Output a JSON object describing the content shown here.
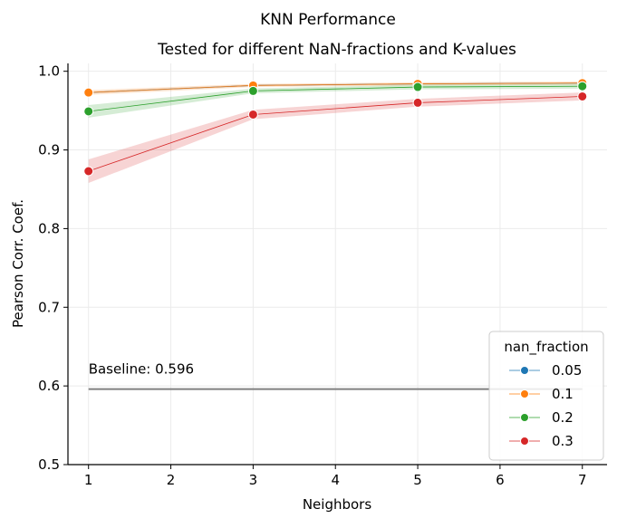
{
  "chart_data": {
    "type": "line",
    "title": "KNN Performance",
    "subtitle": "Tested for different NaN-fractions and K-values",
    "xlabel": "Neighbors",
    "ylabel": "Pearson Corr. Coef.",
    "xlim": [
      0.75,
      7.3
    ],
    "ylim": [
      0.5,
      1.01
    ],
    "xticks": [
      "1",
      "2",
      "3",
      "4",
      "5",
      "6",
      "7"
    ],
    "yticks": [
      "0.5",
      "0.6",
      "0.7",
      "0.8",
      "0.9",
      "1.0"
    ],
    "grid": true,
    "legend": {
      "title": "nan_fraction",
      "placement": "bottom-right"
    },
    "x": [
      1,
      3,
      5,
      7
    ],
    "series": [
      {
        "name": "0.05",
        "color": "#1f77b4",
        "values": [
          0.973,
          0.982,
          0.984,
          0.985
        ],
        "ci_low": [
          0.972,
          0.981,
          0.983,
          0.984
        ],
        "ci_high": [
          0.974,
          0.983,
          0.985,
          0.986
        ]
      },
      {
        "name": "0.1",
        "color": "#ff7f0e",
        "values": [
          0.973,
          0.982,
          0.984,
          0.985
        ],
        "ci_low": [
          0.97,
          0.98,
          0.982,
          0.983
        ],
        "ci_high": [
          0.976,
          0.984,
          0.986,
          0.987
        ]
      },
      {
        "name": "0.2",
        "color": "#2ca02c",
        "values": [
          0.949,
          0.975,
          0.98,
          0.981
        ],
        "ci_low": [
          0.941,
          0.972,
          0.977,
          0.978
        ],
        "ci_high": [
          0.957,
          0.978,
          0.983,
          0.984
        ]
      },
      {
        "name": "0.3",
        "color": "#d62728",
        "values": [
          0.873,
          0.945,
          0.96,
          0.968
        ],
        "ci_low": [
          0.858,
          0.939,
          0.955,
          0.963
        ],
        "ci_high": [
          0.888,
          0.951,
          0.965,
          0.973
        ]
      }
    ],
    "baseline": {
      "label": "Baseline: 0.596",
      "value": 0.596,
      "x_range": [
        1,
        7
      ],
      "color": "#808080"
    }
  }
}
